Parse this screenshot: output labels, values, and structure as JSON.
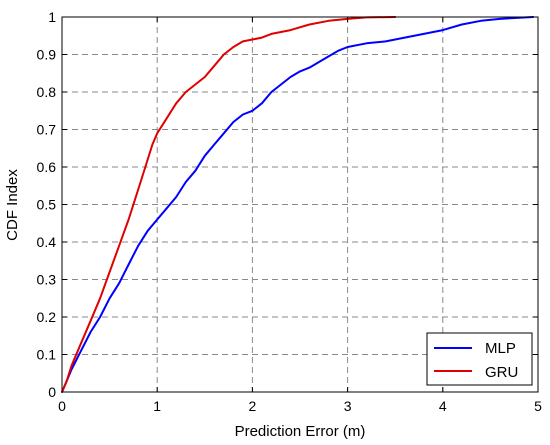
{
  "chart_data": {
    "type": "line",
    "title": "",
    "xlabel": "Prediction Error (m)",
    "ylabel": "CDF Index",
    "xlim": [
      0,
      5
    ],
    "ylim": [
      0,
      1
    ],
    "x_ticks": [
      "0",
      "1",
      "2",
      "3",
      "4",
      "5"
    ],
    "y_ticks": [
      "0",
      "0.1",
      "0.2",
      "0.3",
      "0.4",
      "0.5",
      "0.6",
      "0.7",
      "0.8",
      "0.9",
      "1"
    ],
    "grid": true,
    "legend_position": "bottom-right",
    "series": [
      {
        "name": "MLP",
        "color": "#0000ff",
        "x": [
          0,
          0.05,
          0.1,
          0.2,
          0.3,
          0.4,
          0.5,
          0.6,
          0.7,
          0.8,
          0.9,
          1.0,
          1.1,
          1.2,
          1.3,
          1.4,
          1.5,
          1.6,
          1.7,
          1.8,
          1.9,
          2.0,
          2.1,
          2.2,
          2.3,
          2.4,
          2.5,
          2.6,
          2.7,
          2.8,
          2.9,
          3.0,
          3.2,
          3.4,
          3.6,
          3.8,
          4.0,
          4.2,
          4.4,
          4.6,
          4.8,
          4.95
        ],
        "y": [
          0,
          0.03,
          0.06,
          0.11,
          0.16,
          0.2,
          0.25,
          0.29,
          0.34,
          0.39,
          0.43,
          0.46,
          0.49,
          0.52,
          0.56,
          0.59,
          0.63,
          0.66,
          0.69,
          0.72,
          0.74,
          0.75,
          0.77,
          0.8,
          0.82,
          0.84,
          0.855,
          0.865,
          0.88,
          0.895,
          0.91,
          0.92,
          0.93,
          0.935,
          0.945,
          0.955,
          0.965,
          0.98,
          0.99,
          0.995,
          0.998,
          1.0
        ]
      },
      {
        "name": "GRU",
        "color": "#e00000",
        "x": [
          0,
          0.05,
          0.1,
          0.2,
          0.3,
          0.4,
          0.5,
          0.6,
          0.7,
          0.8,
          0.9,
          0.95,
          1.0,
          1.1,
          1.2,
          1.3,
          1.4,
          1.5,
          1.6,
          1.7,
          1.8,
          1.9,
          2.0,
          2.1,
          2.2,
          2.4,
          2.6,
          2.8,
          3.0,
          3.2,
          3.5
        ],
        "y": [
          0,
          0.03,
          0.07,
          0.13,
          0.19,
          0.25,
          0.32,
          0.39,
          0.46,
          0.54,
          0.62,
          0.66,
          0.69,
          0.73,
          0.77,
          0.8,
          0.82,
          0.84,
          0.87,
          0.9,
          0.92,
          0.935,
          0.94,
          0.945,
          0.955,
          0.965,
          0.98,
          0.99,
          0.995,
          0.999,
          1.0
        ]
      }
    ]
  }
}
